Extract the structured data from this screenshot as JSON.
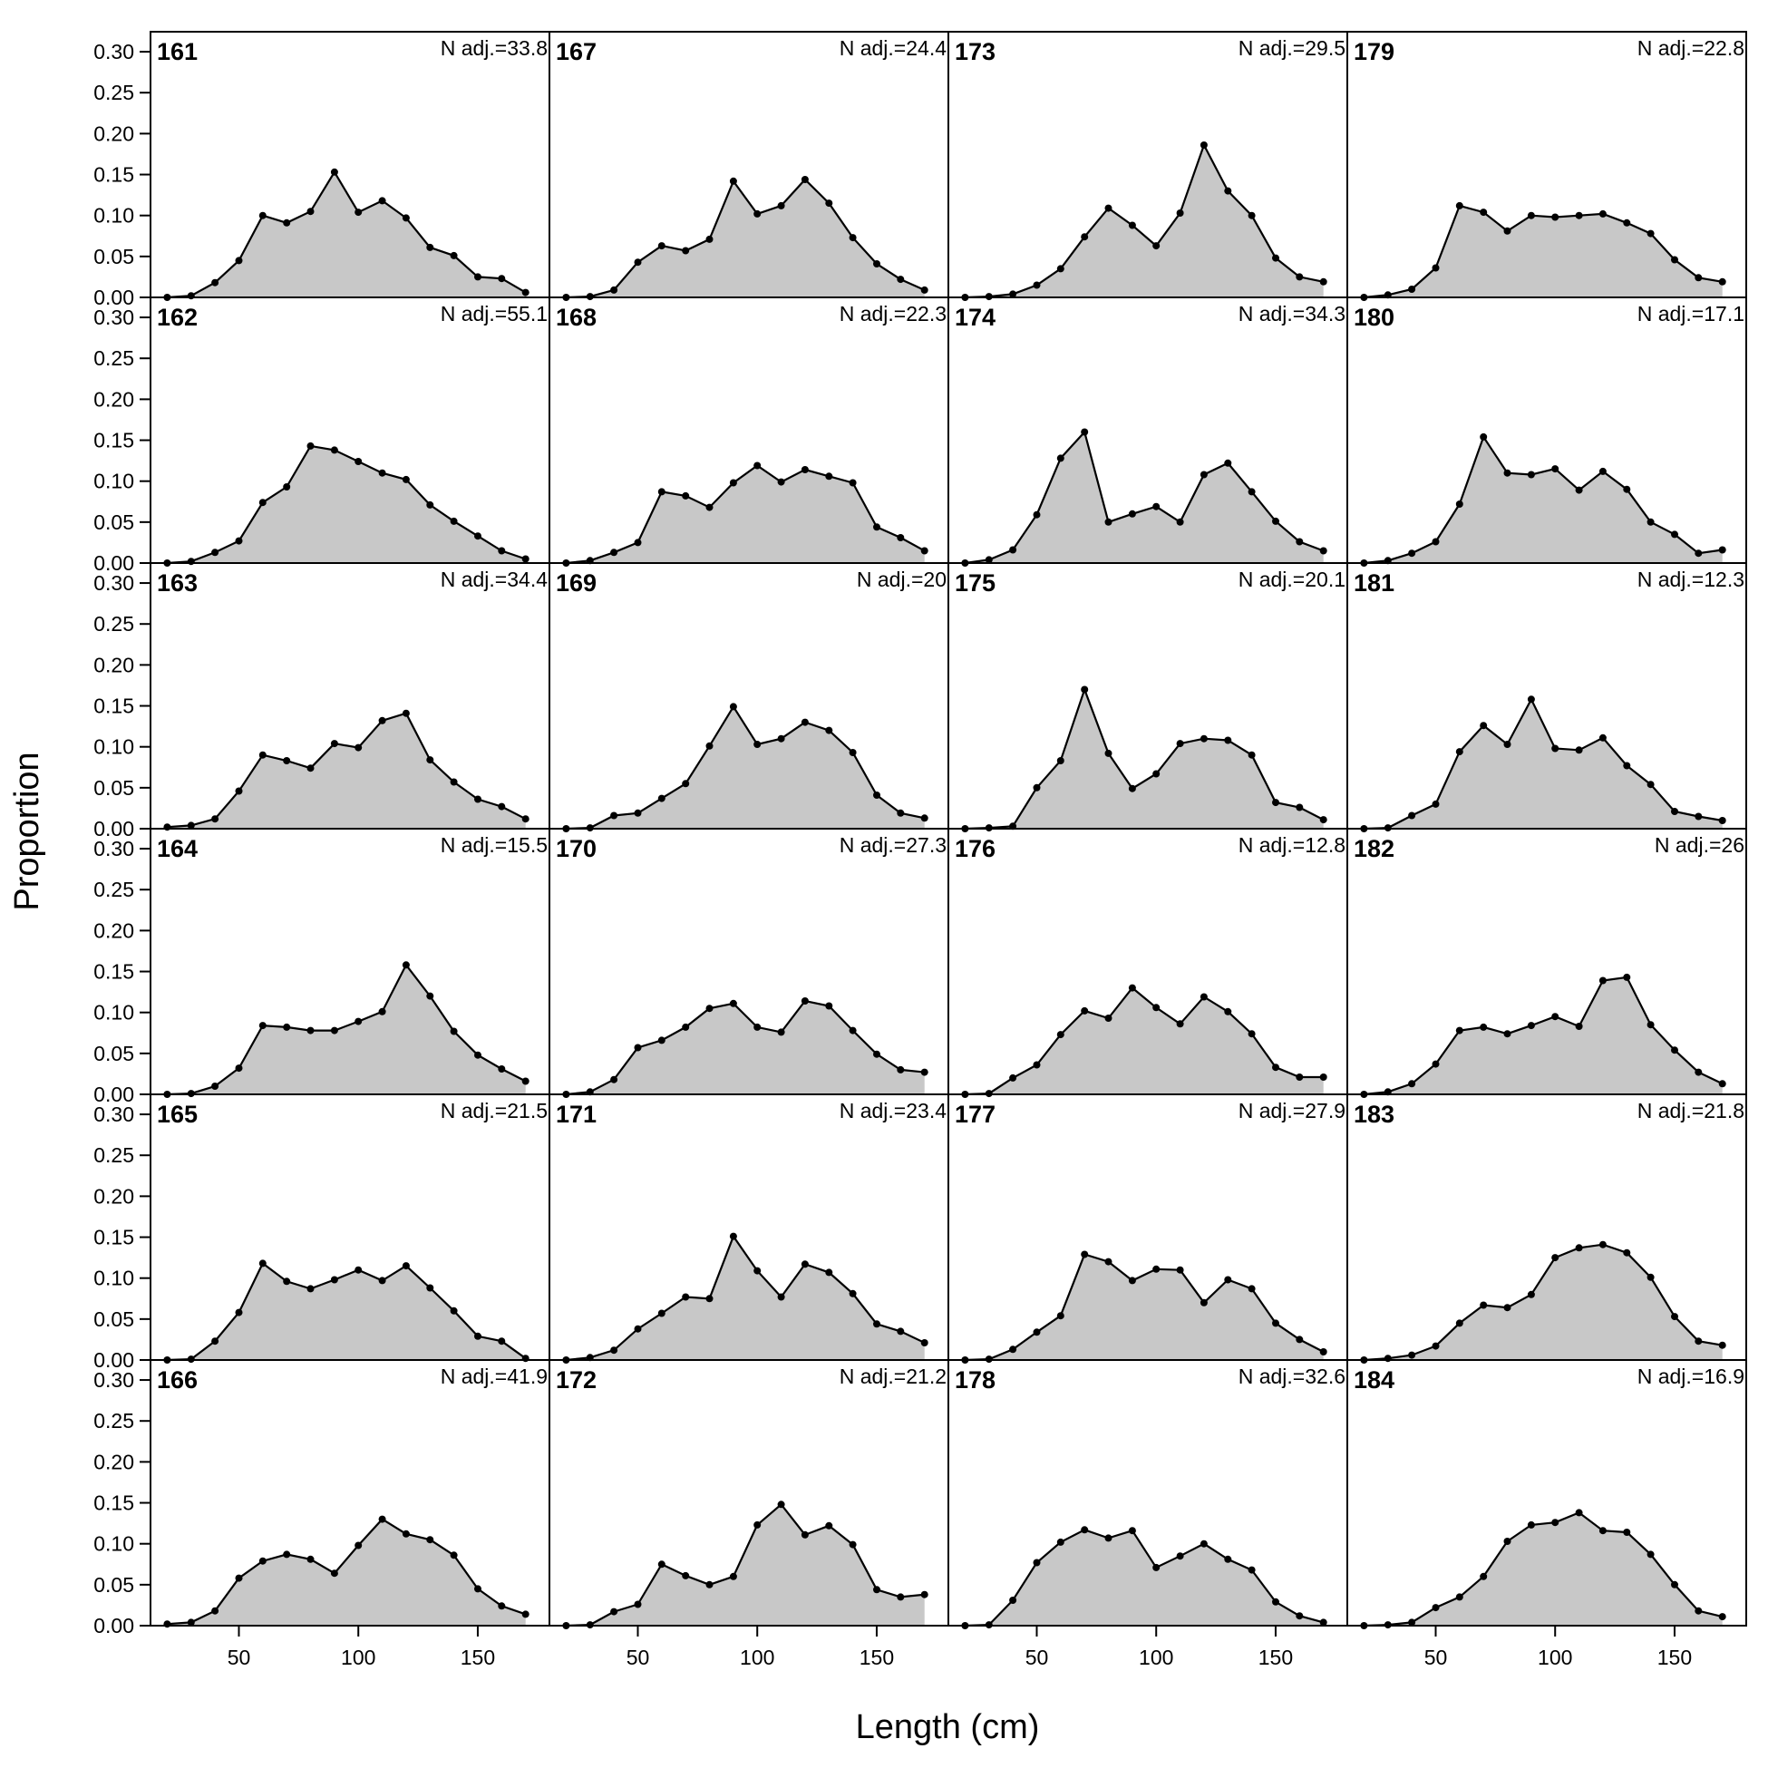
{
  "chart_data": {
    "type": "area",
    "xlabel": "Length (cm)",
    "ylabel": "Proportion",
    "ylim": [
      0,
      0.32
    ],
    "xlim": [
      13,
      180
    ],
    "yticks": [
      "0.00",
      "0.05",
      "0.10",
      "0.15",
      "0.20",
      "0.25",
      "0.30"
    ],
    "xticks": [
      "50",
      "100",
      "150"
    ],
    "x": [
      20,
      30,
      40,
      50,
      60,
      70,
      80,
      90,
      100,
      110,
      120,
      130,
      140,
      150,
      160,
      170
    ],
    "n_prefix": "N adj.=",
    "colors": {
      "fill": "#c8c8c8",
      "line": "#000000"
    },
    "layout": "6 rows x 4 columns, panels ordered down each column",
    "panels": [
      {
        "id": "161",
        "n": "33.8",
        "values": [
          0.0,
          0.002,
          0.018,
          0.045,
          0.1,
          0.091,
          0.105,
          0.153,
          0.104,
          0.118,
          0.097,
          0.061,
          0.051,
          0.025,
          0.023,
          0.006
        ]
      },
      {
        "id": "162",
        "n": "55.1",
        "values": [
          0.0,
          0.002,
          0.013,
          0.027,
          0.074,
          0.093,
          0.143,
          0.138,
          0.124,
          0.11,
          0.102,
          0.071,
          0.051,
          0.033,
          0.015,
          0.005
        ]
      },
      {
        "id": "163",
        "n": "34.4",
        "values": [
          0.002,
          0.004,
          0.012,
          0.046,
          0.09,
          0.083,
          0.074,
          0.104,
          0.099,
          0.132,
          0.141,
          0.084,
          0.057,
          0.036,
          0.027,
          0.012
        ]
      },
      {
        "id": "164",
        "n": "15.5",
        "values": [
          0.0,
          0.001,
          0.01,
          0.032,
          0.084,
          0.082,
          0.078,
          0.078,
          0.089,
          0.101,
          0.158,
          0.12,
          0.077,
          0.048,
          0.031,
          0.016
        ]
      },
      {
        "id": "165",
        "n": "21.5",
        "values": [
          0.0,
          0.001,
          0.023,
          0.058,
          0.118,
          0.096,
          0.087,
          0.098,
          0.11,
          0.097,
          0.115,
          0.088,
          0.06,
          0.029,
          0.023,
          0.002
        ]
      },
      {
        "id": "166",
        "n": "41.9",
        "values": [
          0.002,
          0.004,
          0.018,
          0.058,
          0.079,
          0.087,
          0.081,
          0.064,
          0.098,
          0.13,
          0.112,
          0.105,
          0.086,
          0.045,
          0.024,
          0.014
        ]
      },
      {
        "id": "167",
        "n": "24.4",
        "values": [
          0.0,
          0.001,
          0.009,
          0.043,
          0.063,
          0.057,
          0.071,
          0.142,
          0.102,
          0.112,
          0.144,
          0.115,
          0.073,
          0.041,
          0.022,
          0.009
        ]
      },
      {
        "id": "168",
        "n": "22.3",
        "values": [
          0.0,
          0.003,
          0.013,
          0.025,
          0.087,
          0.082,
          0.068,
          0.098,
          0.119,
          0.099,
          0.114,
          0.106,
          0.098,
          0.044,
          0.031,
          0.015
        ]
      },
      {
        "id": "169",
        "n": "20",
        "values": [
          0.0,
          0.001,
          0.016,
          0.019,
          0.037,
          0.055,
          0.101,
          0.149,
          0.103,
          0.11,
          0.13,
          0.12,
          0.093,
          0.041,
          0.019,
          0.013
        ]
      },
      {
        "id": "170",
        "n": "27.3",
        "values": [
          0.0,
          0.003,
          0.018,
          0.057,
          0.066,
          0.082,
          0.105,
          0.111,
          0.082,
          0.076,
          0.114,
          0.108,
          0.078,
          0.049,
          0.03,
          0.027
        ]
      },
      {
        "id": "171",
        "n": "23.4",
        "values": [
          0.0,
          0.003,
          0.012,
          0.038,
          0.057,
          0.077,
          0.075,
          0.151,
          0.109,
          0.077,
          0.117,
          0.107,
          0.081,
          0.044,
          0.035,
          0.021
        ]
      },
      {
        "id": "172",
        "n": "21.2",
        "values": [
          0.0,
          0.001,
          0.017,
          0.026,
          0.075,
          0.061,
          0.05,
          0.06,
          0.123,
          0.148,
          0.111,
          0.122,
          0.099,
          0.044,
          0.035,
          0.038
        ]
      },
      {
        "id": "173",
        "n": "29.5",
        "values": [
          0.0,
          0.001,
          0.004,
          0.015,
          0.035,
          0.074,
          0.109,
          0.088,
          0.063,
          0.103,
          0.186,
          0.13,
          0.1,
          0.048,
          0.025,
          0.019
        ]
      },
      {
        "id": "174",
        "n": "34.3",
        "values": [
          0.0,
          0.004,
          0.016,
          0.059,
          0.128,
          0.16,
          0.05,
          0.06,
          0.069,
          0.05,
          0.108,
          0.122,
          0.087,
          0.051,
          0.026,
          0.015
        ]
      },
      {
        "id": "175",
        "n": "20.1",
        "values": [
          0.0,
          0.001,
          0.003,
          0.05,
          0.083,
          0.17,
          0.092,
          0.049,
          0.067,
          0.104,
          0.11,
          0.108,
          0.09,
          0.032,
          0.026,
          0.011
        ]
      },
      {
        "id": "176",
        "n": "12.8",
        "values": [
          0.0,
          0.001,
          0.02,
          0.036,
          0.073,
          0.102,
          0.093,
          0.13,
          0.106,
          0.086,
          0.119,
          0.101,
          0.074,
          0.033,
          0.021,
          0.021
        ]
      },
      {
        "id": "177",
        "n": "27.9",
        "values": [
          0.0,
          0.001,
          0.013,
          0.034,
          0.054,
          0.129,
          0.12,
          0.097,
          0.111,
          0.11,
          0.07,
          0.098,
          0.087,
          0.045,
          0.025,
          0.01
        ]
      },
      {
        "id": "178",
        "n": "32.6",
        "values": [
          0.0,
          0.001,
          0.031,
          0.077,
          0.102,
          0.117,
          0.107,
          0.116,
          0.071,
          0.085,
          0.1,
          0.081,
          0.068,
          0.029,
          0.012,
          0.004
        ]
      },
      {
        "id": "179",
        "n": "22.8",
        "values": [
          0.0,
          0.003,
          0.01,
          0.036,
          0.112,
          0.104,
          0.081,
          0.1,
          0.098,
          0.1,
          0.102,
          0.091,
          0.078,
          0.046,
          0.024,
          0.019
        ]
      },
      {
        "id": "180",
        "n": "17.1",
        "values": [
          0.0,
          0.003,
          0.012,
          0.026,
          0.072,
          0.154,
          0.11,
          0.108,
          0.115,
          0.089,
          0.112,
          0.09,
          0.05,
          0.035,
          0.012,
          0.016
        ]
      },
      {
        "id": "181",
        "n": "12.3",
        "values": [
          0.0,
          0.001,
          0.016,
          0.03,
          0.094,
          0.126,
          0.103,
          0.158,
          0.098,
          0.096,
          0.111,
          0.077,
          0.054,
          0.021,
          0.015,
          0.01
        ]
      },
      {
        "id": "182",
        "n": "26",
        "values": [
          0.0,
          0.003,
          0.013,
          0.037,
          0.078,
          0.082,
          0.074,
          0.084,
          0.095,
          0.083,
          0.139,
          0.143,
          0.085,
          0.054,
          0.027,
          0.013
        ]
      },
      {
        "id": "183",
        "n": "21.8",
        "values": [
          0.0,
          0.002,
          0.006,
          0.017,
          0.045,
          0.067,
          0.064,
          0.08,
          0.125,
          0.137,
          0.141,
          0.131,
          0.101,
          0.053,
          0.023,
          0.018
        ]
      },
      {
        "id": "184",
        "n": "16.9",
        "values": [
          0.0,
          0.001,
          0.004,
          0.022,
          0.035,
          0.06,
          0.103,
          0.123,
          0.126,
          0.138,
          0.116,
          0.114,
          0.087,
          0.05,
          0.018,
          0.011
        ]
      }
    ]
  }
}
